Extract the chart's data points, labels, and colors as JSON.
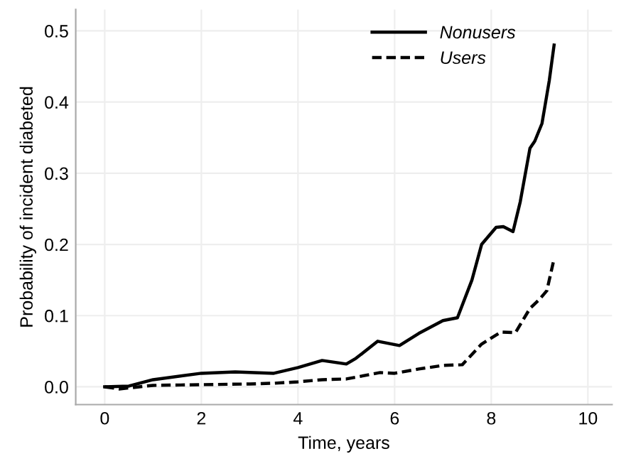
{
  "chart_data": {
    "type": "line",
    "xlabel": "Time, years",
    "ylabel": "Probability of incident diabeted",
    "xlim": [
      -0.6,
      10.5
    ],
    "ylim": [
      -0.025,
      0.53
    ],
    "xticks": [
      0,
      2,
      4,
      6,
      8,
      10
    ],
    "yticks": [
      {
        "value": 0,
        "label": "0.0"
      },
      0.1,
      0.2,
      0.3,
      0.4,
      0.5
    ],
    "grid": true,
    "legend": "top right",
    "marker": "none",
    "series": [
      {
        "name": "Nonusers",
        "color": "#000000",
        "line_style": "solid",
        "x": [
          0,
          0.5,
          1,
          2,
          2.7,
          3.5,
          4,
          4.5,
          5,
          5.2,
          5.65,
          6.1,
          6.5,
          7,
          7.3,
          7.6,
          7.8,
          8.1,
          8.25,
          8.45,
          8.6,
          8.8,
          8.9,
          9.05,
          9.2,
          9.3
        ],
        "values": [
          0,
          0.001,
          0.01,
          0.019,
          0.021,
          0.019,
          0.027,
          0.037,
          0.032,
          0.04,
          0.064,
          0.058,
          0.075,
          0.093,
          0.097,
          0.15,
          0.2,
          0.224,
          0.225,
          0.218,
          0.26,
          0.335,
          0.345,
          0.37,
          0.43,
          0.48
        ]
      },
      {
        "name": "Users",
        "color": "#000000",
        "line_style": "dashed",
        "x": [
          0,
          0.3,
          1,
          2,
          3,
          3.5,
          4,
          4.5,
          5,
          5.7,
          6,
          6.5,
          7,
          7.4,
          7.8,
          8.2,
          8.5,
          8.8,
          9,
          9.15,
          9.3
        ],
        "values": [
          0,
          -0.003,
          0.002,
          0.003,
          0.004,
          0.005,
          0.007,
          0.01,
          0.011,
          0.02,
          0.019,
          0.025,
          0.03,
          0.031,
          0.06,
          0.077,
          0.076,
          0.11,
          0.123,
          0.135,
          0.18
        ]
      }
    ]
  }
}
